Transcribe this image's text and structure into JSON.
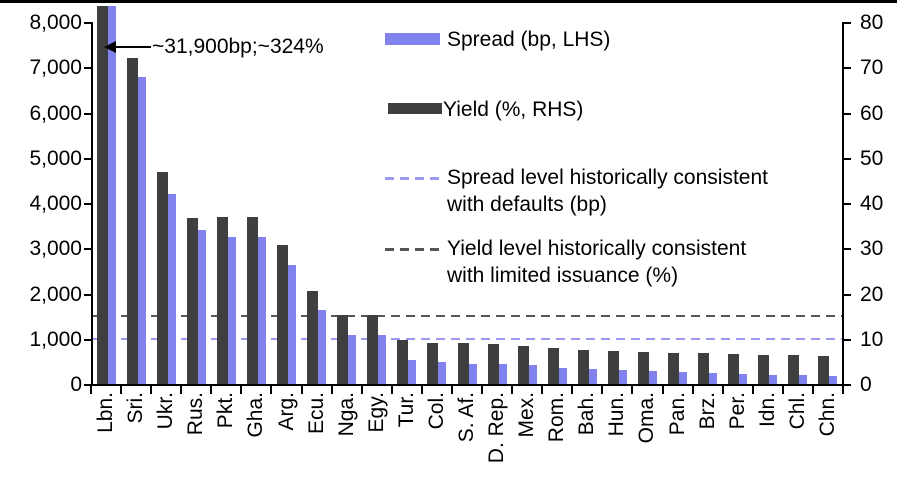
{
  "chart_data": {
    "type": "bar",
    "title": "",
    "categories": [
      "Lbn.",
      "Sri.",
      "Ukr.",
      "Rus.",
      "Pkt.",
      "Gha.",
      "Arg.",
      "Ecu.",
      "Nga.",
      "Egy.",
      "Tur.",
      "Col.",
      "S. Af.",
      "D. Rep.",
      "Mex.",
      "Rom.",
      "Bah.",
      "Hun.",
      "Oma.",
      "Pan.",
      "Brz.",
      "Per.",
      "Idn.",
      "Chl.",
      "Chn."
    ],
    "series": [
      {
        "name": "Spread (bp, LHS)",
        "axis": "left",
        "values": [
          31900,
          6780,
          4200,
          3410,
          3240,
          3240,
          2630,
          1640,
          1090,
          1090,
          540,
          480,
          450,
          440,
          410,
          360,
          330,
          300,
          280,
          260,
          240,
          230,
          200,
          200,
          180
        ]
      },
      {
        "name": "Yield (%, RHS)",
        "axis": "right",
        "values": [
          324,
          72,
          46.8,
          36.6,
          36.8,
          36.8,
          30.7,
          20.5,
          15.3,
          15.3,
          9.7,
          9.1,
          9.0,
          8.9,
          8.3,
          7.9,
          7.6,
          7.4,
          7.1,
          6.9,
          6.8,
          6.6,
          6.4,
          6.4,
          6.1
        ]
      }
    ],
    "left_axis": {
      "min": 0,
      "max": 8000,
      "tick_labels": [
        "8,000",
        "7,000",
        "6,000",
        "5,000",
        "4,000",
        "3,000",
        "2,000",
        "1,000",
        "0"
      ]
    },
    "right_axis": {
      "min": 0,
      "max": 80,
      "tick_labels": [
        "80",
        "70",
        "60",
        "50",
        "40",
        "30",
        "20",
        "10",
        "0"
      ]
    },
    "reference_lines": [
      {
        "name": "Spread level historically consistent with defaults (bp)",
        "axis": "left",
        "value": 1000,
        "style": "dashed"
      },
      {
        "name": "Yield level historically consistent with limited issuance (%)",
        "axis": "right",
        "value": 15,
        "style": "dashed"
      }
    ],
    "annotation": {
      "text": "~31,900bp;~324%",
      "points_to": "Lbn."
    },
    "legend_position": "top-right",
    "grid": false,
    "bar_order": [
      "Yield (%, RHS)",
      "Spread (bp, LHS)"
    ],
    "clipped_categories": [
      "Lbn."
    ]
  },
  "legend": {
    "spread": {
      "label": "Spread (bp, LHS)"
    },
    "yield": {
      "label": "Yield (%, RHS)"
    },
    "spread_line": {
      "line1": "Spread level historically consistent",
      "line2": "with defaults (bp)"
    },
    "yield_line": {
      "line1": "Yield level historically consistent",
      "line2": "with limited issuance (%)"
    }
  },
  "annotation": {
    "text": "~31,900bp;~324%"
  },
  "colors": {
    "spread_bar": "#8282ee",
    "yield_bar": "#3f3f3f",
    "spread_ref_line": "#9a9af2",
    "yield_ref_line": "#565656",
    "axis": "#000000"
  }
}
